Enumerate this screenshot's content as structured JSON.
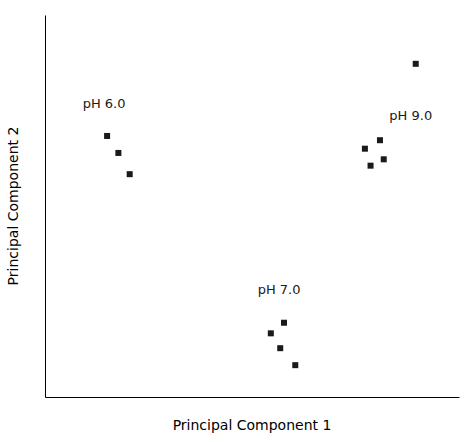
{
  "chart_data": {
    "type": "scatter",
    "x_label": "Principal Component 1",
    "y_label": "Principal Component 2",
    "series": [
      {
        "x": [
          -0.82,
          -0.76,
          -0.7
        ],
        "values": [
          0.38,
          0.3,
          0.2
        ],
        "color": "#1a1a1a",
        "marker": "square"
      },
      {
        "x": [
          0.05,
          0.12,
          0.1,
          0.18
        ],
        "values": [
          -0.55,
          -0.5,
          -0.62,
          -0.7
        ],
        "color": "#1a1a1a",
        "marker": "square"
      },
      {
        "x": [
          0.55,
          0.63,
          0.58,
          0.65,
          0.82
        ],
        "values": [
          0.32,
          0.36,
          0.24,
          0.27,
          0.72
        ],
        "color": "#1a1a1a",
        "marker": "square"
      }
    ],
    "annotations": [
      {
        "text": "pH 6.0",
        "x": -0.95,
        "y": 0.5
      },
      {
        "text": "pH 7.0",
        "x": -0.02,
        "y": -0.38
      },
      {
        "text": "pH 9.0",
        "x": 0.68,
        "y": 0.44
      }
    ],
    "xlim": [
      -1.15,
      1.05
    ],
    "ylim": [
      -0.85,
      0.95
    ],
    "tick_labels": false,
    "grid": false
  }
}
